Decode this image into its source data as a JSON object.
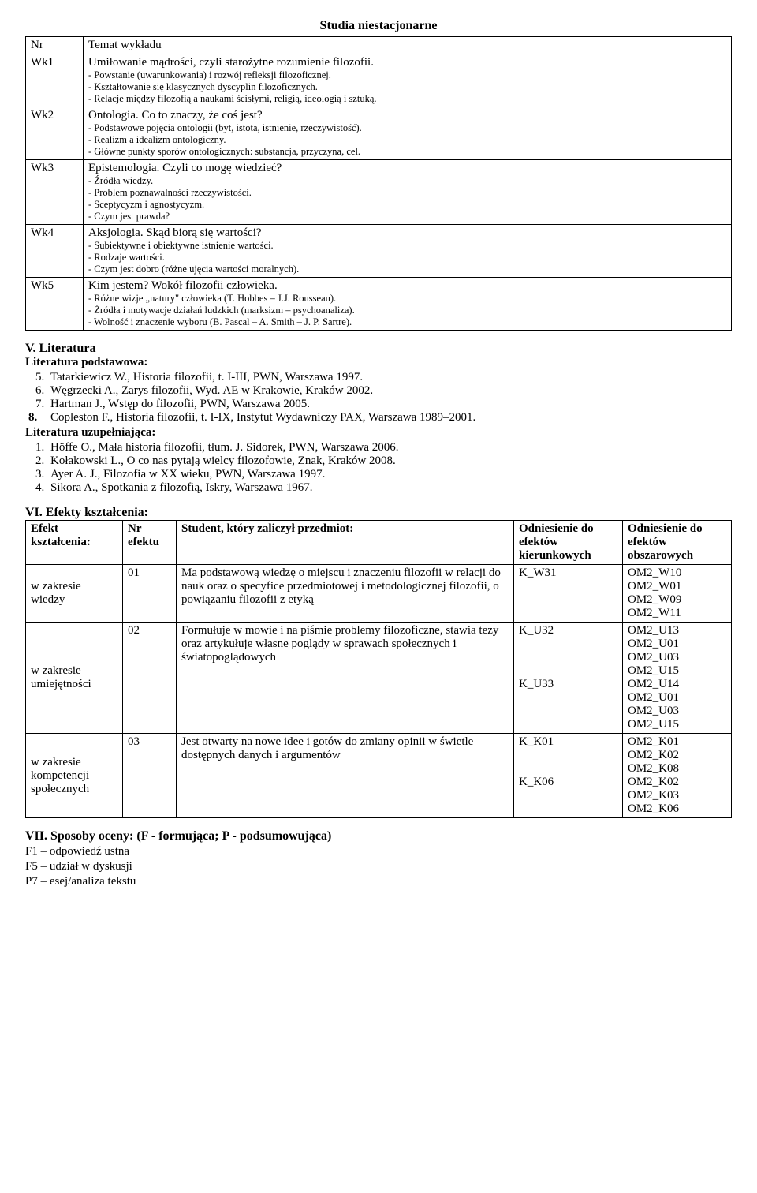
{
  "title": "Studia niestacjonarne",
  "lectureTable": {
    "headers": {
      "nr": "Nr",
      "topic": "Temat wykładu"
    },
    "rows": [
      {
        "nr": "Wk1",
        "main": "Umiłowanie mądrości, czyli starożytne rozumienie filozofii.",
        "subs": [
          "- Powstanie (uwarunkowania) i rozwój refleksji filozoficznej.",
          "- Kształtowanie się klasycznych dyscyplin filozoficznych.",
          "- Relacje między filozofią a naukami ścisłymi, religią, ideologią i sztuką."
        ]
      },
      {
        "nr": "Wk2",
        "main": "Ontologia. Co to znaczy, że coś jest?",
        "subs": [
          "- Podstawowe pojęcia ontologii (byt, istota, istnienie, rzeczywistość).",
          "- Realizm a idealizm ontologiczny.",
          "- Główne punkty sporów ontologicznych: substancja, przyczyna, cel."
        ]
      },
      {
        "nr": "Wk3",
        "main": "Epistemologia. Czyli co mogę wiedzieć?",
        "subs": [
          "- Źródła wiedzy.",
          "- Problem poznawalności rzeczywistości.",
          "- Sceptycyzm i agnostycyzm.",
          "- Czym jest prawda?"
        ]
      },
      {
        "nr": "Wk4",
        "main": "Aksjologia. Skąd biorą się wartości?",
        "subs": [
          "- Subiektywne i obiektywne istnienie wartości.",
          "- Rodzaje wartości.",
          "- Czym jest dobro (różne ujęcia wartości moralnych)."
        ]
      },
      {
        "nr": "Wk5",
        "main": "Kim jestem? Wokół filozofii człowieka.",
        "subs": [
          "- Różne wizje „natury\" człowieka (T. Hobbes – J.J. Rousseau).",
          "- Źródła i motywacje działań ludzkich (marksizm – psychoanaliza).",
          "- Wolność i znaczenie wyboru (B. Pascal – A. Smith – J. P. Sartre)."
        ]
      }
    ]
  },
  "literature": {
    "header": "V. Literatura",
    "basicLabel": "Literatura podstawowa:",
    "basicStart": 5,
    "basic": [
      "Tatarkiewicz W., Historia filozofii, t. I-III, PWN, Warszawa 1997.",
      "Węgrzecki A., Zarys filozofii, Wyd. AE w Krakowie, Kraków 2002.",
      "Hartman J., Wstęp do filozofii, PWN, Warszawa 2005.",
      "Copleston F., Historia filozofii, t. I-IX, Instytut Wydawniczy PAX,  Warszawa 1989–2001."
    ],
    "suppLabel": "Literatura uzupełniająca:",
    "supp": [
      "Höffe O., Mała historia filozofii, tłum. J. Sidorek, PWN, Warszawa 2006.",
      "Kołakowski L., O co nas pytają wielcy filozofowie, Znak, Kraków 2008.",
      "Ayer A. J., Filozofia w XX wieku, PWN, Warszawa 1997.",
      "Sikora A., Spotkania z filozofią, Iskry, Warszawa 1967."
    ]
  },
  "effects": {
    "header": "VI. Efekty kształcenia:",
    "columns": {
      "c1": "Efekt kształcenia:",
      "c2": "Nr efektu",
      "c3": "Student, który zaliczył przedmiot:",
      "c4": "Odniesienie do efektów kierunkowych",
      "c5": "Odniesienie do efektów obszarowych"
    },
    "rows": [
      {
        "area": "w zakresie wiedzy",
        "nr": "01",
        "desc": "Ma podstawową wiedzę o miejscu i znaczeniu filozofii w relacji do nauk oraz o specyfice przedmiotowej i metodologicznej filozofii, o powiązaniu filozofii z etyką",
        "kier": "K_W31",
        "obsz": "OM2_W10\nOM2_W01\nOM2_W09\nOM2_W11"
      },
      {
        "area": "w zakresie umiejętności",
        "nr": "02",
        "desc": "Formułuje w mowie i na piśmie problemy filozoficzne, stawia tezy oraz artykułuje własne poglądy w sprawach społecznych i światopoglądowych",
        "kier": "K_U32\n\n\n\nK_U33",
        "obsz": " OM2_U13\nOM2_U01\nOM2_U03\nOM2_U15\nOM2_U14\nOM2_U01\nOM2_U03\nOM2_U15"
      },
      {
        "area": "w zakresie kompetencji społecznych",
        "nr": "03",
        "desc": "Jest otwarty na nowe idee i gotów do zmiany opinii w świetle dostępnych danych i argumentów",
        "kier": "K_K01\n\n\nK_K06",
        "obsz": "OM2_K01\nOM2_K02\nOM2_K08\nOM2_K02\nOM2_K03\nOM2_K06"
      }
    ]
  },
  "assessment": {
    "header": "VII. Sposoby oceny: (F - formująca; P - podsumowująca)",
    "lines": [
      "F1 – odpowiedź ustna",
      "F5 – udział w dyskusji",
      "P7 –  esej/analiza tekstu"
    ]
  }
}
